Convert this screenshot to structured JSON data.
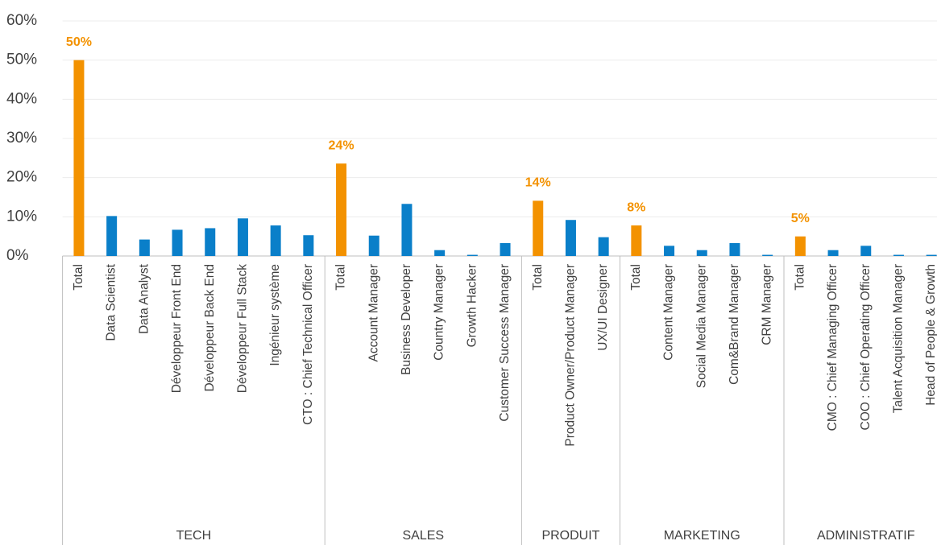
{
  "chart_data": {
    "type": "bar",
    "categories": [
      "Total",
      "Data Scientist",
      "Data Analyst",
      "Développeur Front End",
      "Développeur Back End",
      "Développeur Full Stack",
      "Ingénieur système",
      "CTO : Chief Technical Officer",
      "Total",
      "Account Manager",
      "Business Developer",
      "Country Manager",
      "Growth Hacker",
      "Customer Success Manager",
      "Total",
      "Product Owner/Product Manager",
      "UX/UI Designer",
      "Total",
      "Content Manager",
      "Social Media Manager",
      "Com&Brand Manager",
      "CRM Manager",
      "Total",
      "CMO : Chief Managing Officer",
      "COO : Chief Operating Officer",
      "Talent Acquisition Manager",
      "Head of People & Growth"
    ],
    "values": [
      50,
      10.2,
      4.2,
      6.7,
      7.1,
      9.6,
      7.8,
      5.3,
      23.6,
      5.2,
      13.3,
      1.5,
      0.3,
      3.3,
      14.1,
      9.2,
      4.8,
      7.8,
      2.6,
      1.5,
      3.3,
      0.3,
      5,
      1.5,
      2.6,
      0.3,
      0.3
    ],
    "value_labels": [
      "50%",
      null,
      null,
      null,
      null,
      null,
      null,
      null,
      "24%",
      null,
      null,
      null,
      null,
      null,
      "14%",
      null,
      null,
      "8%",
      null,
      null,
      null,
      null,
      "5%",
      null,
      null,
      null,
      null
    ],
    "colors": [
      "#f39200",
      "#0a7fc9",
      "#0a7fc9",
      "#0a7fc9",
      "#0a7fc9",
      "#0a7fc9",
      "#0a7fc9",
      "#0a7fc9",
      "#f39200",
      "#0a7fc9",
      "#0a7fc9",
      "#0a7fc9",
      "#0a7fc9",
      "#0a7fc9",
      "#f39200",
      "#0a7fc9",
      "#0a7fc9",
      "#f39200",
      "#0a7fc9",
      "#0a7fc9",
      "#0a7fc9",
      "#0a7fc9",
      "#f39200",
      "#0a7fc9",
      "#0a7fc9",
      "#0a7fc9",
      "#0a7fc9"
    ],
    "groups": [
      {
        "label": "TECH",
        "size": 8
      },
      {
        "label": "SALES",
        "size": 6
      },
      {
        "label": "PRODUIT",
        "size": 3
      },
      {
        "label": "MARKETING",
        "size": 5
      },
      {
        "label": "ADMINISTRATIF",
        "size": 5
      }
    ],
    "ylim": [
      0,
      60
    ],
    "yticks": [
      {
        "value": 0,
        "label": "0%"
      },
      {
        "value": 10,
        "label": "10%"
      },
      {
        "value": 20,
        "label": "20%"
      },
      {
        "value": 30,
        "label": "30%"
      },
      {
        "value": 40,
        "label": "40%"
      },
      {
        "value": 50,
        "label": "50%"
      },
      {
        "value": 60,
        "label": "60%"
      }
    ],
    "grid": true
  }
}
